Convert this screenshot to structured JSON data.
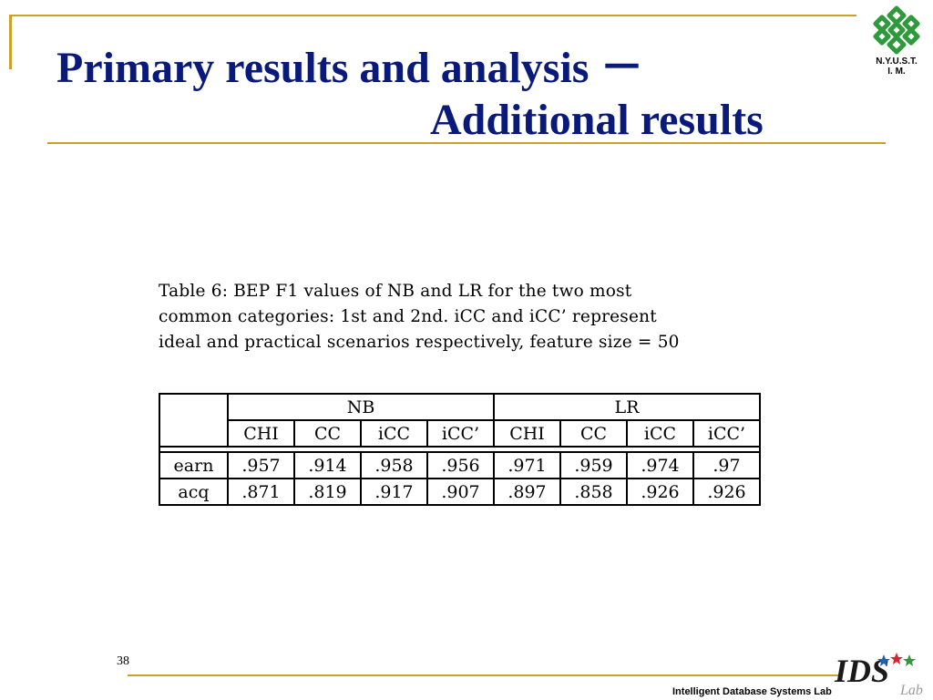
{
  "slide": {
    "title_line1": "Primary results and analysis －",
    "title_line2": "Additional results",
    "logo_text_line1": "N.Y.U.S.T.",
    "logo_text_line2": "I. M.",
    "page_number": "38",
    "footer_lab": "Intelligent Database Systems Lab",
    "ids_logo_text": "IDS",
    "ids_logo_sub": "Lab"
  },
  "caption": {
    "line1": "Table 6:  BEP F1 values of NB and LR for the two most",
    "line2": "common categories: 1st and 2nd.   iCC and iCC’ represent",
    "line3": "ideal and practical scenarios respectively, feature size = 50"
  },
  "table": {
    "groups": [
      "NB",
      "LR"
    ],
    "columns": [
      "CHI",
      "CC",
      "iCC",
      "iCC’",
      "CHI",
      "CC",
      "iCC",
      "iCC’"
    ],
    "rows": [
      {
        "label": "earn",
        "values": [
          ".957",
          ".914",
          ".958",
          ".956",
          ".971",
          ".959",
          ".974",
          ".97"
        ]
      },
      {
        "label": "acq",
        "values": [
          ".871",
          ".819",
          ".917",
          ".907",
          ".897",
          ".858",
          ".926",
          ".926"
        ]
      }
    ]
  },
  "colors": {
    "title": "#0a1a7a",
    "rule": "#c9a227",
    "logo_green": "#2e9a3c"
  }
}
